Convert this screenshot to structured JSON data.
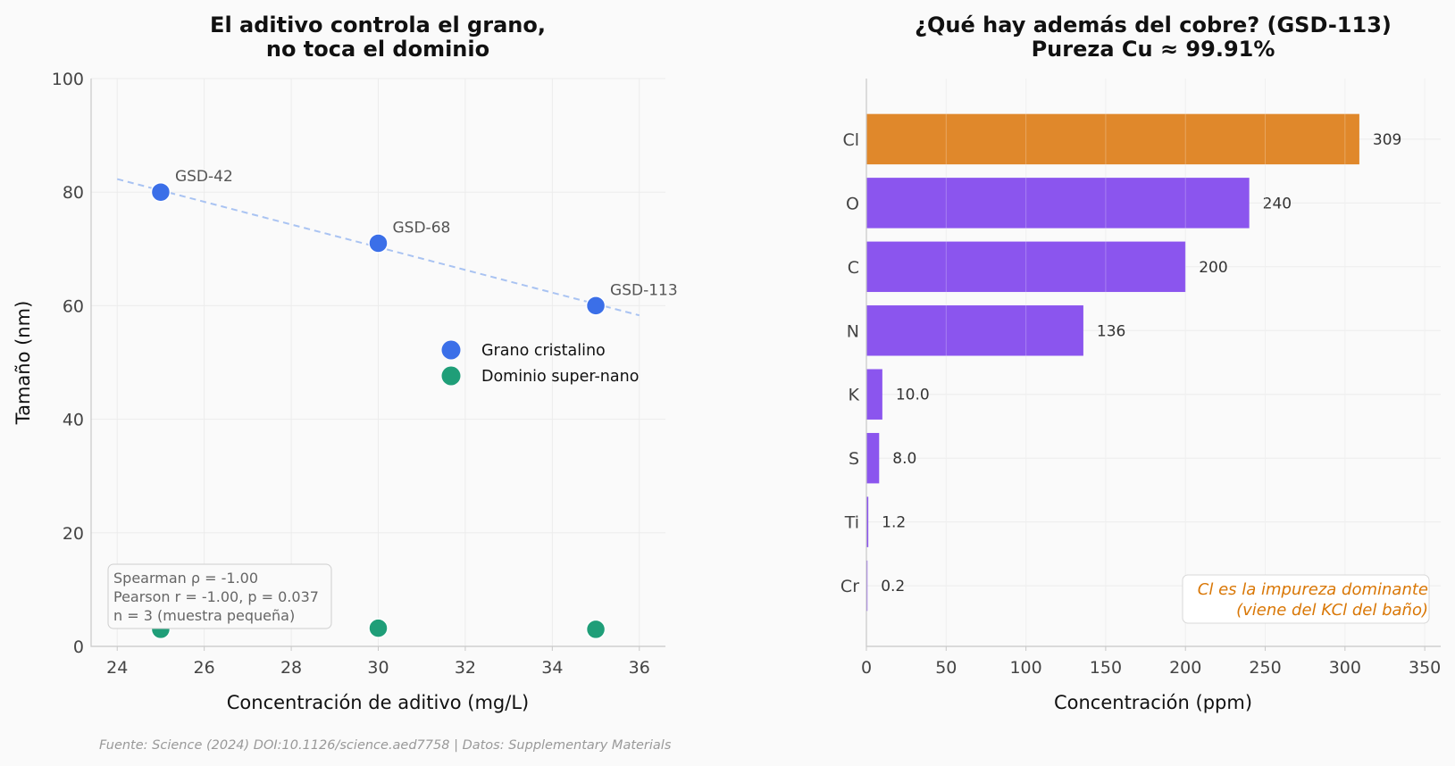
{
  "source_note": "Fuente: Science (2024) DOI:10.1126/science.aed7758 | Datos: Supplementary Materials",
  "chart_data": [
    {
      "type": "scatter",
      "title_lines": [
        "El aditivo controla el grano,",
        "no toca el dominio"
      ],
      "xlabel": "Concentración de aditivo (mg/L)",
      "ylabel": "Tamaño (nm)",
      "xlim": [
        23.4,
        36.6
      ],
      "ylim": [
        0,
        100
      ],
      "xticks": [
        24,
        26,
        28,
        30,
        32,
        34,
        36
      ],
      "yticks": [
        0,
        20,
        40,
        60,
        80,
        100
      ],
      "grid": true,
      "legend_position": "center-right",
      "series": [
        {
          "name": "Grano cristalino",
          "color": "#3b6fe8",
          "x": [
            25,
            30,
            35
          ],
          "y": [
            80,
            71,
            60
          ],
          "point_labels": [
            "GSD-42",
            "GSD-68",
            "GSD-113"
          ]
        },
        {
          "name": "Dominio super-nano",
          "color": "#1f9e78",
          "x": [
            25,
            30,
            35
          ],
          "y": [
            3,
            3.2,
            3
          ]
        }
      ],
      "trendline": {
        "color": "#a9c3f2",
        "x": [
          24,
          36
        ],
        "y": [
          82.3,
          58.3
        ]
      },
      "stats_lines": [
        "Spearman ρ = -1.00",
        "Pearson r = -1.00, p = 0.037",
        "n = 3 (muestra pequeña)"
      ]
    },
    {
      "type": "bar",
      "orientation": "horizontal",
      "title_lines": [
        "¿Qué hay además del cobre? (GSD-113)",
        "Pureza Cu ≈ 99.91%"
      ],
      "xlabel": "Concentración (ppm)",
      "xlim": [
        0,
        360
      ],
      "xticks": [
        0,
        50,
        100,
        150,
        200,
        250,
        300,
        350
      ],
      "grid": true,
      "categories": [
        "Cl",
        "O",
        "C",
        "N",
        "K",
        "S",
        "Ti",
        "Cr"
      ],
      "values": [
        309,
        240,
        200,
        136,
        10.0,
        8.0,
        1.2,
        0.2
      ],
      "value_labels": [
        "309",
        "240",
        "200",
        "136",
        "10.0",
        "8.0",
        "1.2",
        "0.2"
      ],
      "colors": [
        "#e0882b",
        "#8b55ee",
        "#8b55ee",
        "#8b55ee",
        "#8b55ee",
        "#8b55ee",
        "#8b55ee",
        "#8b55ee"
      ],
      "note_lines": [
        "Cl es la impureza dominante",
        "(viene del KCl del baño)"
      ]
    }
  ]
}
